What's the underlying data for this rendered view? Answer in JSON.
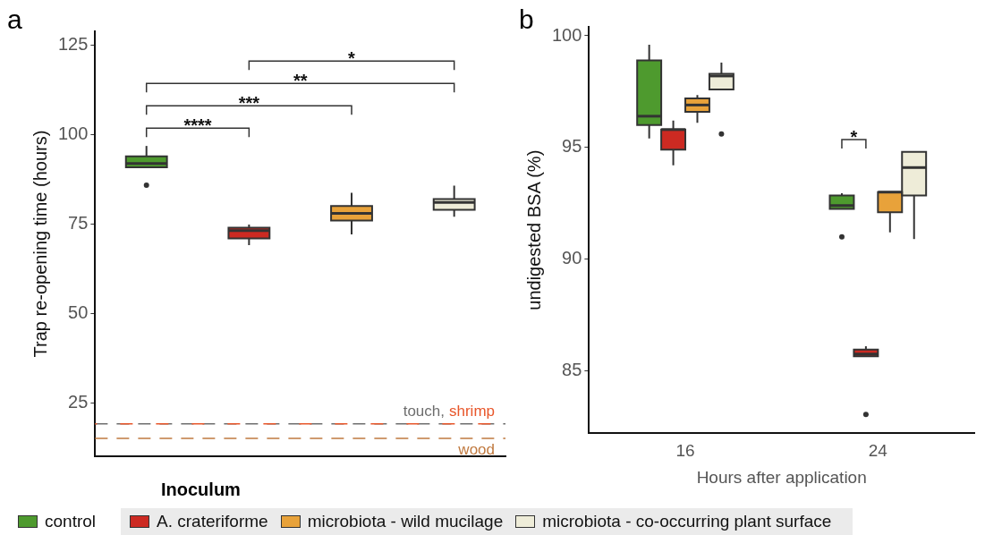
{
  "chart_data": [
    {
      "type": "box",
      "title": "a",
      "ylabel": "Trap re-opening time (hours)",
      "categories": [
        null
      ],
      "ylim": [
        10,
        129
      ],
      "yticks": [
        25,
        50,
        75,
        100,
        125
      ],
      "tick_labels": "y",
      "grid": false,
      "legend": "bottom",
      "legend_title": "Inoculum",
      "series": [
        {
          "name": "control",
          "color": "#4e9a2e",
          "boxes": [
            {
              "low": 90.9,
              "q1": 90.9,
              "median": 92.0,
              "q3": 94.0,
              "high": 96.9,
              "outliers": [
                85.9
              ]
            }
          ]
        },
        {
          "name": "A. crateriforme",
          "color": "#cc2a22",
          "boxes": [
            {
              "low": 69.1,
              "q1": 71.0,
              "median": 73.2,
              "q3": 74.0,
              "high": 74.9
            }
          ]
        },
        {
          "name": "microbiota - wild mucilage",
          "color": "#e8a23a",
          "boxes": [
            {
              "low": 72.1,
              "q1": 76.0,
              "median": 78.0,
              "q3": 80.1,
              "high": 83.8
            }
          ]
        },
        {
          "name": "microbiota - co-occurring plant surface",
          "color": "#eeecd8",
          "boxes": [
            {
              "low": 77.1,
              "q1": 79.0,
              "median": 81.1,
              "q3": 82.0,
              "high": 85.8
            }
          ]
        }
      ],
      "ref_lines": [
        {
          "axis": "y",
          "value": 19.1,
          "label": "touch,",
          "color": "#6e6e6e",
          "line_style": "dashed"
        },
        {
          "axis": "y",
          "value": 19.1,
          "label": "shrimp",
          "color": "#e8562a",
          "line_style": "dashed"
        },
        {
          "axis": "y",
          "value": 15.0,
          "label": "wood",
          "color": "#c07a40",
          "line_style": "dashed"
        }
      ],
      "annotations": [
        "****",
        "***",
        "**",
        "*"
      ]
    },
    {
      "type": "box",
      "title": "b",
      "xlabel": "Hours after application",
      "ylabel": "undigested BSA (%)",
      "categories": [
        "16",
        "24"
      ],
      "ylim": [
        82.2,
        100.4
      ],
      "yticks": [
        85,
        90,
        95,
        100
      ],
      "grid": false,
      "legend": false,
      "series": [
        {
          "color": "#4e9a2e",
          "boxes": [
            {
              "low": 95.4,
              "q1": 96.0,
              "median": 96.4,
              "q3": 98.9,
              "high": 99.6
            },
            {
              "low": 92.25,
              "q1": 92.25,
              "median": 92.4,
              "q3": 92.85,
              "high": 92.95,
              "outliers": [
                91.0
              ]
            }
          ]
        },
        {
          "color": "#cc2a22",
          "boxes": [
            {
              "low": 94.2,
              "q1": 94.9,
              "median": 95.8,
              "q3": 95.8,
              "high": 96.2
            },
            {
              "low": 85.65,
              "q1": 85.65,
              "median": 85.75,
              "q3": 85.95,
              "high": 86.1,
              "outliers": [
                83.05
              ]
            }
          ]
        },
        {
          "color": "#e8a23a",
          "boxes": [
            {
              "low": 96.1,
              "q1": 96.6,
              "median": 96.9,
              "q3": 97.2,
              "high": 97.35
            },
            {
              "low": 91.2,
              "q1": 92.1,
              "median": 93.0,
              "q3": 93.0,
              "high": 93.0
            }
          ]
        },
        {
          "color": "#eeecd8",
          "boxes": [
            {
              "low": 97.6,
              "q1": 97.6,
              "median": 98.2,
              "q3": 98.3,
              "high": 98.8,
              "outliers": [
                95.6
              ]
            },
            {
              "low": 90.9,
              "q1": 92.85,
              "median": 94.1,
              "q3": 94.8,
              "high": 94.8
            }
          ]
        }
      ],
      "annotations": [
        "*"
      ]
    }
  ]
}
